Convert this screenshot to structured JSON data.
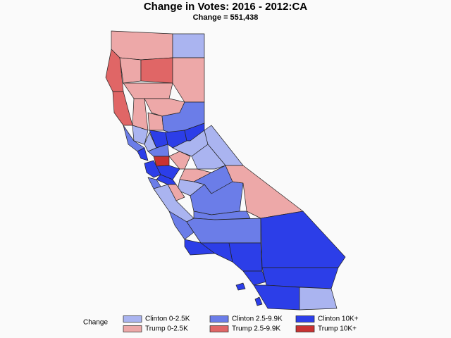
{
  "title": "Change in Votes: 2016 - 2012:CA",
  "subtitle": "Change = 551,438",
  "legend": {
    "title": "Change",
    "items": [
      {
        "label": "Clinton 0-2.5K",
        "color": "#aab4f0"
      },
      {
        "label": "Trump 0-2.5K",
        "color": "#eda8a8"
      },
      {
        "label": "Clinton 2.5-9.9K",
        "color": "#6b7de8"
      },
      {
        "label": "Trump 2.5-9.9K",
        "color": "#e06666"
      },
      {
        "label": "Clinton 10K+",
        "color": "#2c3ee8"
      },
      {
        "label": "Trump 10K+",
        "color": "#c83232"
      }
    ]
  }
}
